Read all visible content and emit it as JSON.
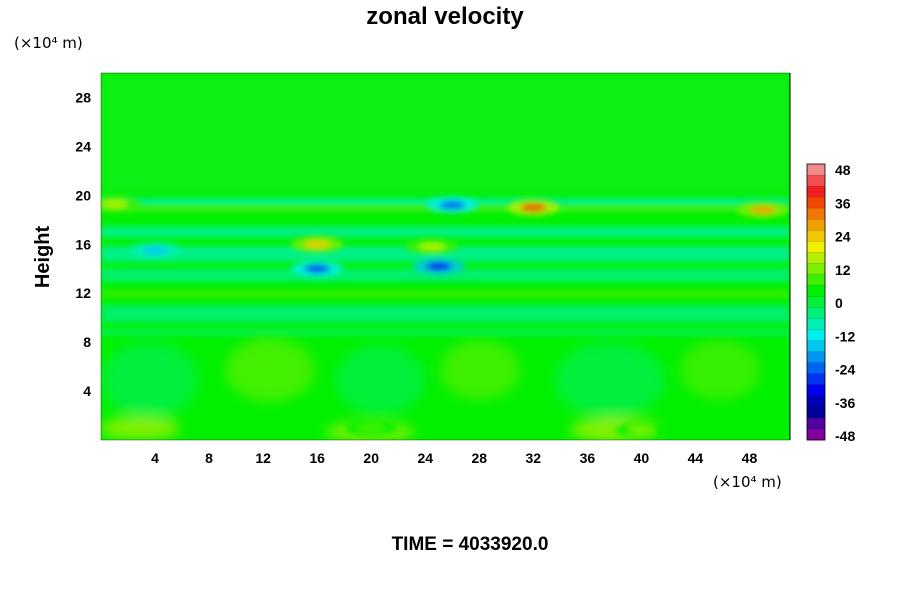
{
  "chart_data": {
    "type": "heatmap",
    "title": "zonal velocity",
    "ylabel": "Height",
    "x_unit_label": "(×10⁴ m)",
    "y_unit_label": "(×10⁴ m)",
    "footer": "TIME = 4033920.0",
    "xlim": [
      0,
      51
    ],
    "ylim": [
      0,
      30
    ],
    "x_ticks": [
      "4",
      "8",
      "12",
      "16",
      "20",
      "24",
      "28",
      "32",
      "36",
      "40",
      "44",
      "48"
    ],
    "y_ticks": [
      "4",
      "8",
      "12",
      "16",
      "20",
      "24",
      "28"
    ],
    "colorbar": {
      "range": [
        -48,
        48
      ],
      "tick_labels": [
        "48",
        "36",
        "24",
        "12",
        "0",
        "-12",
        "-24",
        "-36",
        "-48"
      ],
      "colors_top_to_bottom": [
        "#f08c8c",
        "#f05050",
        "#f01e1e",
        "#f04600",
        "#f07800",
        "#f0a000",
        "#f0c800",
        "#f0f000",
        "#b4f000",
        "#78f000",
        "#3cf000",
        "#00f000",
        "#00f03c",
        "#00f078",
        "#00f0b4",
        "#00f0f0",
        "#00c8f0",
        "#0096f0",
        "#0064f0",
        "#0032f0",
        "#0000f0",
        "#0000b4",
        "#00009a",
        "#5000a0",
        "#8000a0"
      ]
    },
    "field_description": {
      "background_value": 0,
      "features": [
        {
          "x": 4,
          "y": 15.5,
          "value": -16
        },
        {
          "x": 16,
          "y": 16.0,
          "value": 22
        },
        {
          "x": 16,
          "y": 14.0,
          "value": -26
        },
        {
          "x": 24.5,
          "y": 15.8,
          "value": 16
        },
        {
          "x": 25,
          "y": 14.2,
          "value": -30
        },
        {
          "x": 26,
          "y": 19.2,
          "value": -22
        },
        {
          "x": 32,
          "y": 19.0,
          "value": 34
        },
        {
          "x": 49,
          "y": 18.8,
          "value": 26
        },
        {
          "x": 1,
          "y": 19.3,
          "value": 14
        },
        {
          "x": 40,
          "y": 0.8,
          "value": 10
        },
        {
          "x": 20,
          "y": 1.0,
          "value": 8
        }
      ]
    }
  }
}
